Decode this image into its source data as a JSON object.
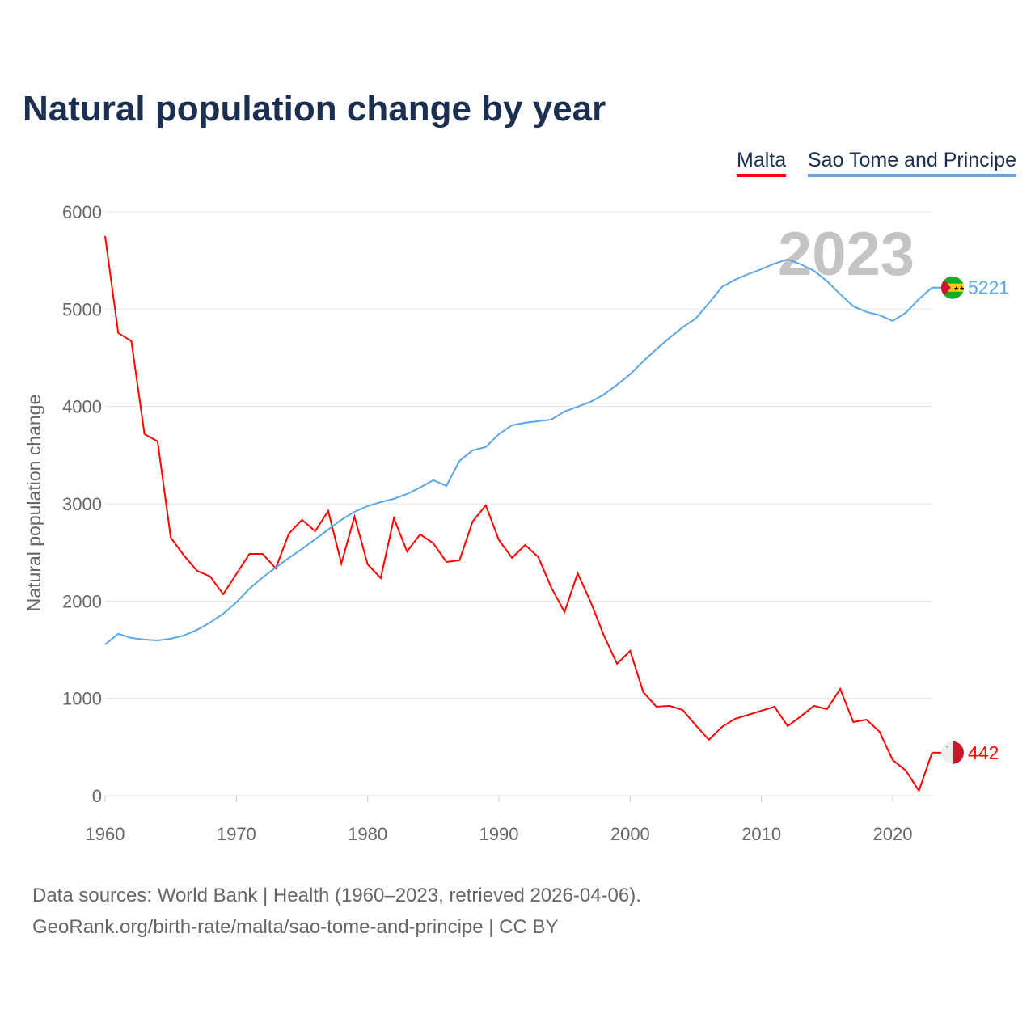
{
  "title": "Natural population change by year",
  "footer": {
    "line1": "Data sources: World Bank | Health (1960–2023, retrieved 2026-04-06).",
    "line2": "GeoRank.org/birth-rate/malta/sao-tome-and-principe | CC BY"
  },
  "chart_data": {
    "type": "line",
    "title": "Natural population change by year",
    "xlabel": "",
    "ylabel": "Natural population change",
    "xlim": [
      1960,
      2023
    ],
    "ylim": [
      0,
      6000
    ],
    "grid": true,
    "legend_position": "top-right",
    "year_label": "2023",
    "x_ticks": [
      "1960",
      "1970",
      "1980",
      "1990",
      "2000",
      "2010",
      "2020"
    ],
    "y_ticks": [
      "0",
      "1000",
      "2000",
      "3000",
      "4000",
      "5000",
      "6000"
    ],
    "x": [
      1960,
      1961,
      1962,
      1963,
      1964,
      1965,
      1966,
      1967,
      1968,
      1969,
      1970,
      1971,
      1972,
      1973,
      1974,
      1975,
      1976,
      1977,
      1978,
      1979,
      1980,
      1981,
      1982,
      1983,
      1984,
      1985,
      1986,
      1987,
      1988,
      1989,
      1990,
      1991,
      1992,
      1993,
      1994,
      1995,
      1996,
      1997,
      1998,
      1999,
      2000,
      2001,
      2002,
      2003,
      2004,
      2005,
      2006,
      2007,
      2008,
      2009,
      2010,
      2011,
      2012,
      2013,
      2014,
      2015,
      2016,
      2017,
      2018,
      2019,
      2020,
      2021,
      2022,
      2023
    ],
    "series": [
      {
        "name": "Malta",
        "color": "#ff0000",
        "end_label": "442",
        "flag": "malta-flag",
        "values": [
          5752,
          4755,
          4672,
          3716,
          3641,
          2652,
          2469,
          2311,
          2253,
          2070,
          2278,
          2485,
          2485,
          2336,
          2693,
          2835,
          2718,
          2926,
          2386,
          2868,
          2377,
          2236,
          2851,
          2510,
          2685,
          2594,
          2402,
          2419,
          2818,
          2984,
          2627,
          2444,
          2577,
          2452,
          2136,
          1887,
          2286,
          1987,
          1646,
          1355,
          1488,
          1064,
          914,
          923,
          881,
          723,
          574,
          707,
          790,
          831,
          873,
          914,
          715,
          815,
          923,
          889,
          1097,
          756,
          781,
          657,
          366,
          258,
          50,
          442
        ]
      },
      {
        "name": "Sao Tome and Principe",
        "color": "#5ba6ea",
        "end_label": "5221",
        "flag": "sao-tome-flag",
        "values": [
          1554,
          1663,
          1621,
          1604,
          1596,
          1613,
          1646,
          1704,
          1779,
          1870,
          1987,
          2128,
          2244,
          2344,
          2444,
          2535,
          2635,
          2735,
          2835,
          2918,
          2976,
          3017,
          3051,
          3101,
          3167,
          3242,
          3184,
          3441,
          3549,
          3583,
          3716,
          3807,
          3832,
          3849,
          3865,
          3948,
          3998,
          4048,
          4123,
          4223,
          4331,
          4464,
          4589,
          4705,
          4813,
          4904,
          5062,
          5229,
          5303,
          5361,
          5411,
          5469,
          5511,
          5461,
          5395,
          5287,
          5154,
          5029,
          4971,
          4938,
          4879,
          4963,
          5104,
          5221
        ]
      }
    ]
  }
}
